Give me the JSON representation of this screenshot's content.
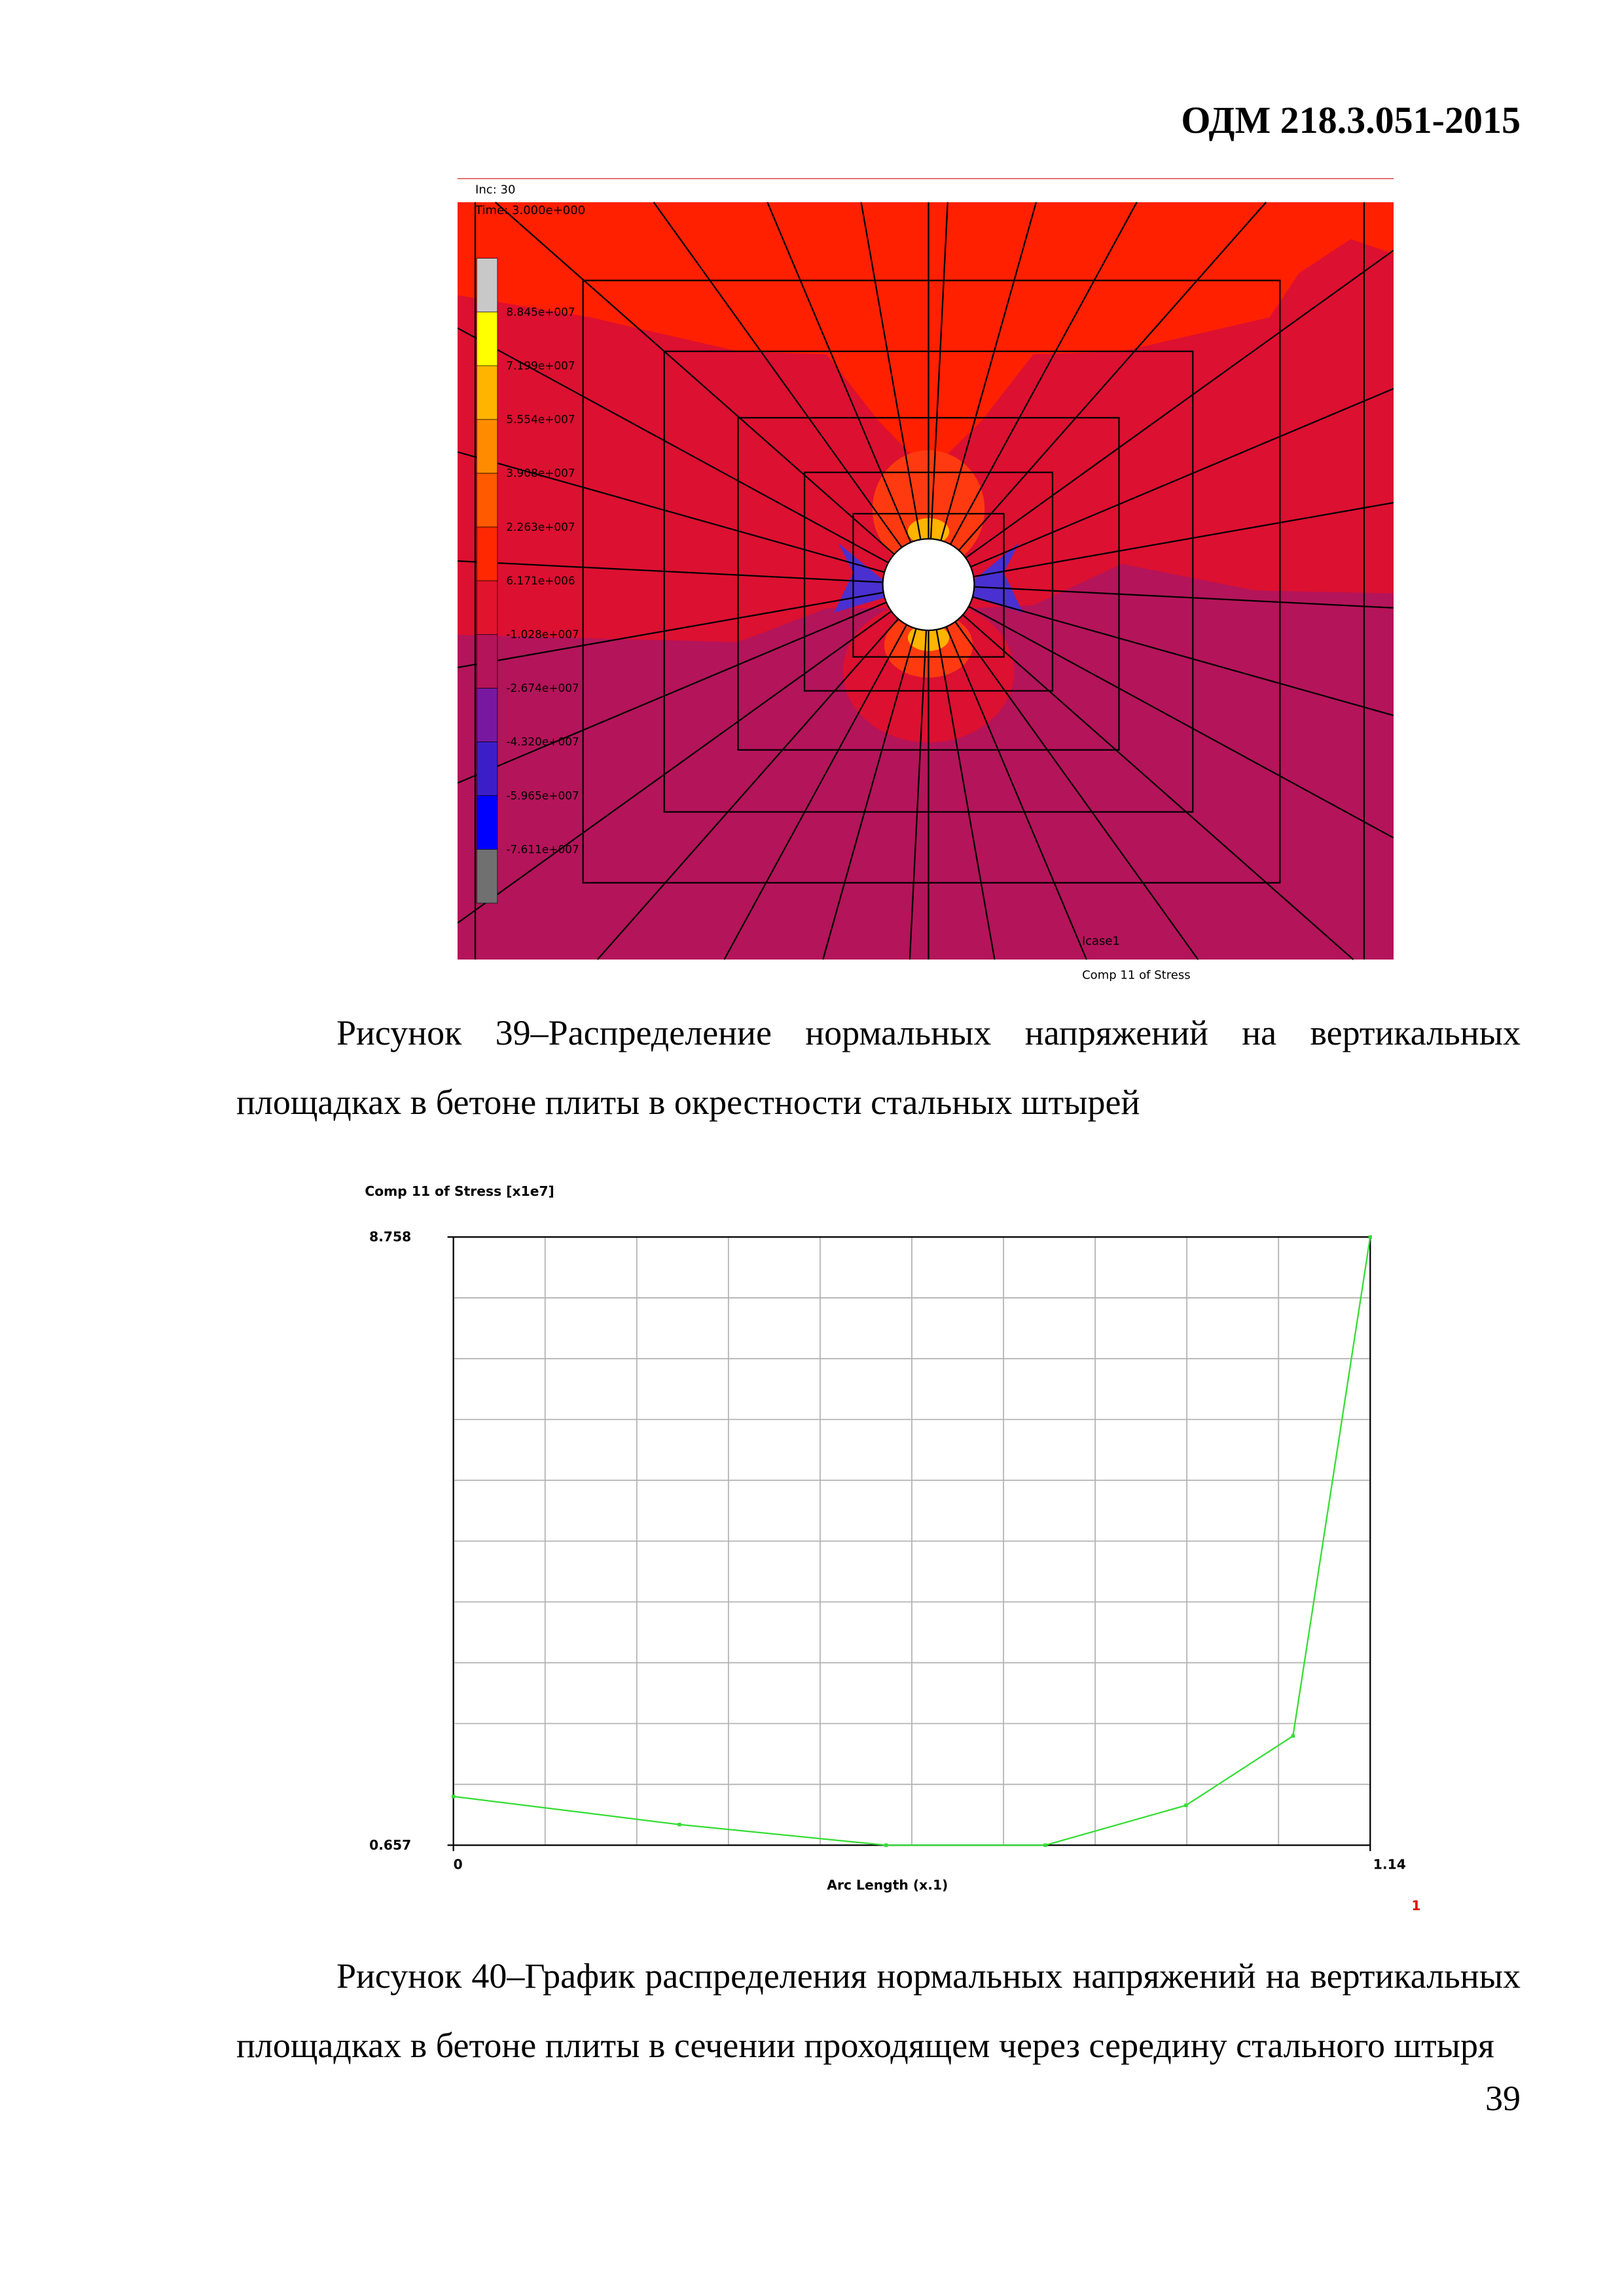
{
  "header": "ОДМ 218.3.051-2015",
  "figure_39": {
    "inc": "Inc:  30",
    "time": "Time:  3.000e+000",
    "legend": [
      "8.845e+007",
      "7.199e+007",
      "5.554e+007",
      "3.908e+007",
      "2.263e+007",
      "6.171e+006",
      "-1.028e+007",
      "-2.674e+007",
      "-4.320e+007",
      "-5.965e+007",
      "-7.611e+007"
    ],
    "load_case": "lcase1",
    "result": "Comp 11 of Stress"
  },
  "caption_39": "Рисунок 39–Распределение нормальных напряжений на вертикальных площадках в бетоне плиты в окрестности стальных штырей",
  "chart_data": {
    "type": "line",
    "title": "Comp 11 of Stress [x1e7]",
    "x_label": "Arc Length (x.1)",
    "x": [
      0,
      0.281,
      0.538,
      0.736,
      0.911,
      1.044,
      1.14
    ],
    "series": [
      {
        "name": "1",
        "color": "#33dd33",
        "values": [
          1.306,
          0.932,
          0.657,
          0.657,
          1.188,
          2.112,
          8.758
        ]
      }
    ],
    "xlim": [
      0,
      1.14
    ],
    "ylim": [
      0.657,
      8.758
    ],
    "xticks": [
      0,
      1.14
    ],
    "yticks": [
      0.657,
      8.758
    ],
    "grid": true
  },
  "caption_40": "Рисунок 40–График распределения нормальных напряжений на вертикальных площадках в бетоне плиты в сечении проходящем через середину стального штыря",
  "page_number": "39"
}
